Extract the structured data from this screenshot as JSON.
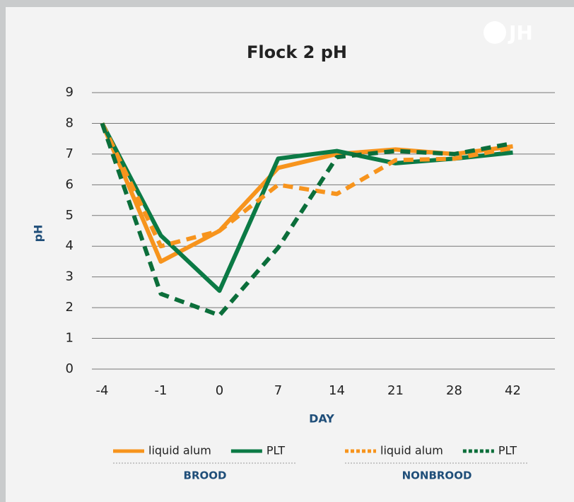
{
  "chart_data": {
    "type": "line",
    "title": "Flock 2 pH",
    "logo": "JH",
    "x_label": "DAY",
    "y_label": "pH",
    "categories": [
      "-4",
      "-1",
      "0",
      "7",
      "14",
      "21",
      "28",
      "42"
    ],
    "ylim": [
      0,
      9
    ],
    "yticks": [
      0,
      1,
      2,
      3,
      4,
      5,
      6,
      7,
      8,
      9
    ],
    "grid": true,
    "legend_groups": [
      "BROOD",
      "NONBROOD"
    ],
    "series": [
      {
        "name": "liquid alum",
        "color": "#f7941d",
        "line_style": "solid",
        "values": [
          8.0,
          3.5,
          4.5,
          6.55,
          7.0,
          7.15,
          7.0,
          7.25
        ]
      },
      {
        "name": "PLT",
        "color": "#0b7a45",
        "line_style": "solid",
        "values": [
          8.0,
          4.35,
          2.55,
          6.85,
          7.1,
          6.7,
          6.85,
          7.05
        ]
      },
      {
        "name": "liquid alum",
        "color": "#f7941d",
        "line_style": "dashed",
        "values": [
          8.0,
          4.0,
          4.5,
          6.0,
          5.7,
          6.8,
          6.85,
          7.2
        ]
      },
      {
        "name": "PLT",
        "color": "#0b6e3a",
        "line_style": "dashed",
        "values": [
          8.0,
          2.45,
          1.75,
          3.95,
          6.9,
          7.1,
          7.0,
          7.35
        ]
      }
    ]
  }
}
